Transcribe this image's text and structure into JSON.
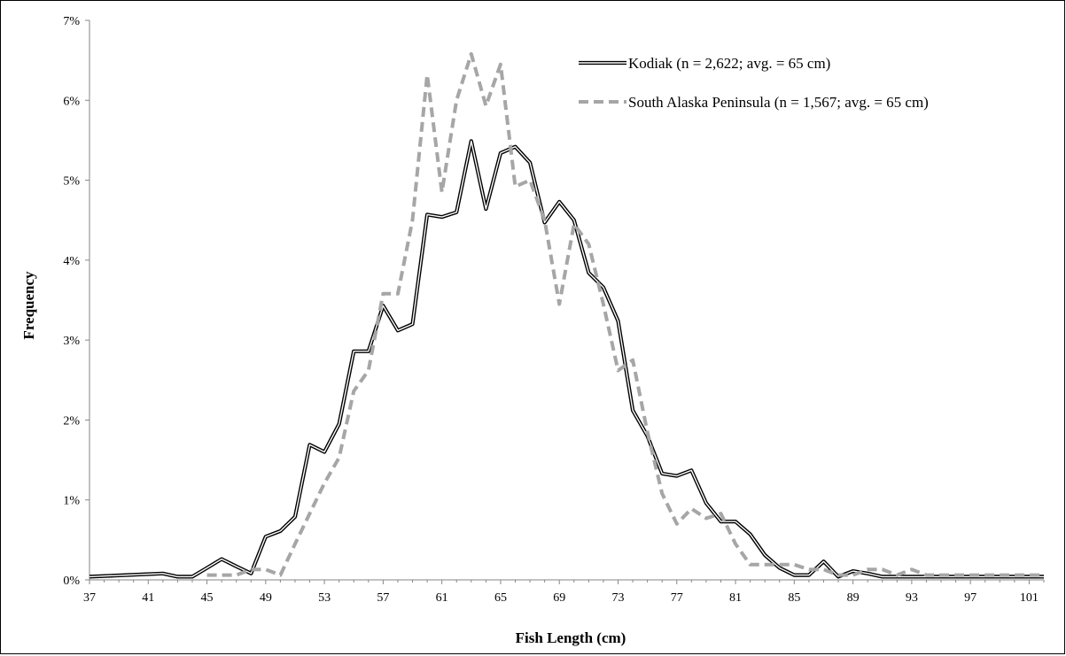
{
  "chart_data": {
    "type": "line",
    "title": "",
    "xlabel": "Fish Length (cm)",
    "ylabel": "Frequency",
    "xlim": [
      37,
      102
    ],
    "ylim": [
      0,
      7
    ],
    "y_unit": "%",
    "x_tick_labels": [
      "37",
      "41",
      "45",
      "49",
      "53",
      "57",
      "61",
      "65",
      "69",
      "73",
      "77",
      "81",
      "85",
      "89",
      "93",
      "97",
      "101"
    ],
    "y_tick_labels": [
      "0%",
      "1%",
      "2%",
      "3%",
      "4%",
      "5%",
      "6%",
      "7%"
    ],
    "grid": false,
    "legend_position": "top-right",
    "series": [
      {
        "name": "Kodiak (n = 2,622; avg. = 65 cm)",
        "style": "double-line",
        "color": "#000000",
        "x": [
          37,
          42,
          43,
          44,
          45,
          46,
          47,
          48,
          49,
          50,
          51,
          52,
          53,
          54,
          55,
          56,
          57,
          58,
          59,
          60,
          61,
          62,
          63,
          64,
          65,
          66,
          67,
          68,
          69,
          70,
          71,
          72,
          73,
          74,
          75,
          76,
          77,
          78,
          79,
          80,
          81,
          82,
          83,
          84,
          85,
          86,
          87,
          88,
          89,
          90,
          91,
          92,
          93,
          94,
          95,
          96,
          97,
          98,
          99,
          100,
          101,
          102
        ],
        "y": [
          0.04,
          0.08,
          0.04,
          0.04,
          0.15,
          0.26,
          0.17,
          0.08,
          0.54,
          0.61,
          0.79,
          1.69,
          1.6,
          1.95,
          2.86,
          2.86,
          3.43,
          3.12,
          3.2,
          4.57,
          4.54,
          4.6,
          5.49,
          4.64,
          5.34,
          5.42,
          5.22,
          4.47,
          4.73,
          4.5,
          3.84,
          3.66,
          3.24,
          2.12,
          1.8,
          1.33,
          1.3,
          1.37,
          0.96,
          0.73,
          0.73,
          0.57,
          0.31,
          0.15,
          0.06,
          0.06,
          0.23,
          0.04,
          0.11,
          0.08,
          0.04,
          0.04,
          0.04,
          0.04,
          0.04,
          0.04,
          0.04,
          0.04,
          0.04,
          0.04,
          0.04,
          0.04
        ]
      },
      {
        "name": "South Alaska Peninsula (n = 1,567; avg. = 65 cm)",
        "style": "dashed",
        "color": "#a6a6a6",
        "x": [
          45,
          46,
          47,
          48,
          49,
          50,
          51,
          52,
          53,
          54,
          55,
          56,
          57,
          58,
          59,
          60,
          61,
          62,
          63,
          64,
          65,
          66,
          67,
          68,
          69,
          70,
          71,
          72,
          73,
          74,
          75,
          76,
          77,
          78,
          79,
          80,
          81,
          82,
          83,
          84,
          85,
          86,
          87,
          88,
          89,
          90,
          91,
          92,
          93,
          94,
          95,
          96,
          97,
          98,
          99,
          100,
          101,
          102
        ],
        "y": [
          0.06,
          0.06,
          0.06,
          0.13,
          0.13,
          0.06,
          0.45,
          0.83,
          1.21,
          1.53,
          2.36,
          2.62,
          3.58,
          3.58,
          4.5,
          6.32,
          4.85,
          6.0,
          6.58,
          5.93,
          6.45,
          4.92,
          5.0,
          4.5,
          3.45,
          4.45,
          4.2,
          3.45,
          2.62,
          2.75,
          1.85,
          1.08,
          0.7,
          0.89,
          0.77,
          0.83,
          0.45,
          0.19,
          0.19,
          0.19,
          0.19,
          0.13,
          0.13,
          0.06,
          0.06,
          0.13,
          0.13,
          0.06,
          0.13,
          0.06,
          0.06,
          0.06,
          0.06,
          0.06,
          0.06,
          0.06,
          0.06,
          0.06
        ]
      }
    ]
  }
}
